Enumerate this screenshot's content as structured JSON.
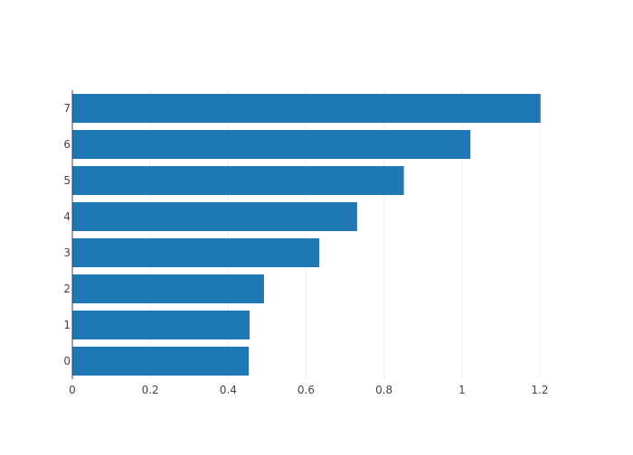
{
  "chart_data": {
    "type": "bar",
    "orientation": "horizontal",
    "categories": [
      "0",
      "1",
      "2",
      "3",
      "4",
      "5",
      "6",
      "7"
    ],
    "values": [
      0.453,
      0.455,
      0.492,
      0.634,
      0.731,
      0.851,
      1.022,
      1.202
    ],
    "xlim": [
      0,
      1.3
    ],
    "xticks": [
      0,
      0.2,
      0.4,
      0.6,
      0.8,
      1.0,
      1.2
    ],
    "xtick_labels": [
      "0",
      "0.2",
      "0.4",
      "0.6",
      "0.8",
      "1",
      "1.2"
    ],
    "title": "",
    "xlabel": "",
    "ylabel": "",
    "grid": {
      "x": true,
      "y": false
    },
    "legend": "none",
    "colors": {
      "bar": "#1f77b4",
      "grid": "#eeeeee",
      "axis": "#444444",
      "text": "#444444"
    }
  }
}
